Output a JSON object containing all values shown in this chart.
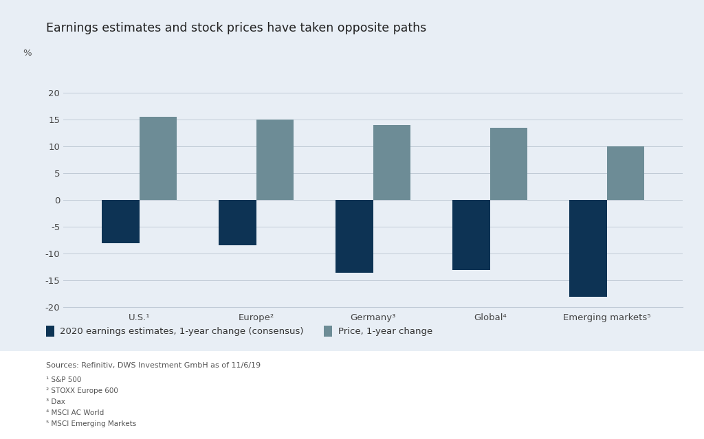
{
  "title": "Earnings estimates and stock prices have taken opposite paths",
  "categories": [
    "U.S.¹",
    "Europe²",
    "Germany³",
    "Global⁴",
    "Emerging markets⁵"
  ],
  "earnings_values": [
    -8.0,
    -8.5,
    -13.5,
    -13.0,
    -18.0
  ],
  "price_values": [
    15.5,
    15.0,
    14.0,
    13.5,
    10.0
  ],
  "earnings_color": "#0d3354",
  "price_color": "#6d8c96",
  "background_color": "#e8eef5",
  "outer_background": "#ffffff",
  "ylim": [
    -20,
    25
  ],
  "yticks": [
    -20,
    -15,
    -10,
    -5,
    0,
    5,
    10,
    15,
    20
  ],
  "ylabel": "%",
  "legend_label_earnings": "2020 earnings estimates, 1-year change (consensus)",
  "legend_label_price": "Price, 1-year change",
  "sources_text": "Sources: Refinitiv, DWS Investment GmbH as of 11/6/19",
  "footnotes": [
    "¹ S&P 500",
    "² STOXX Europe 600",
    "³ Dax",
    "⁴ MSCI AC World",
    "⁵ MSCI Emerging Markets"
  ],
  "title_fontsize": 12.5,
  "axis_fontsize": 9.5,
  "legend_fontsize": 9.5,
  "sources_fontsize": 8.0,
  "footnotes_fontsize": 7.5,
  "bar_width": 0.32,
  "grid_color": "#c0cad6"
}
